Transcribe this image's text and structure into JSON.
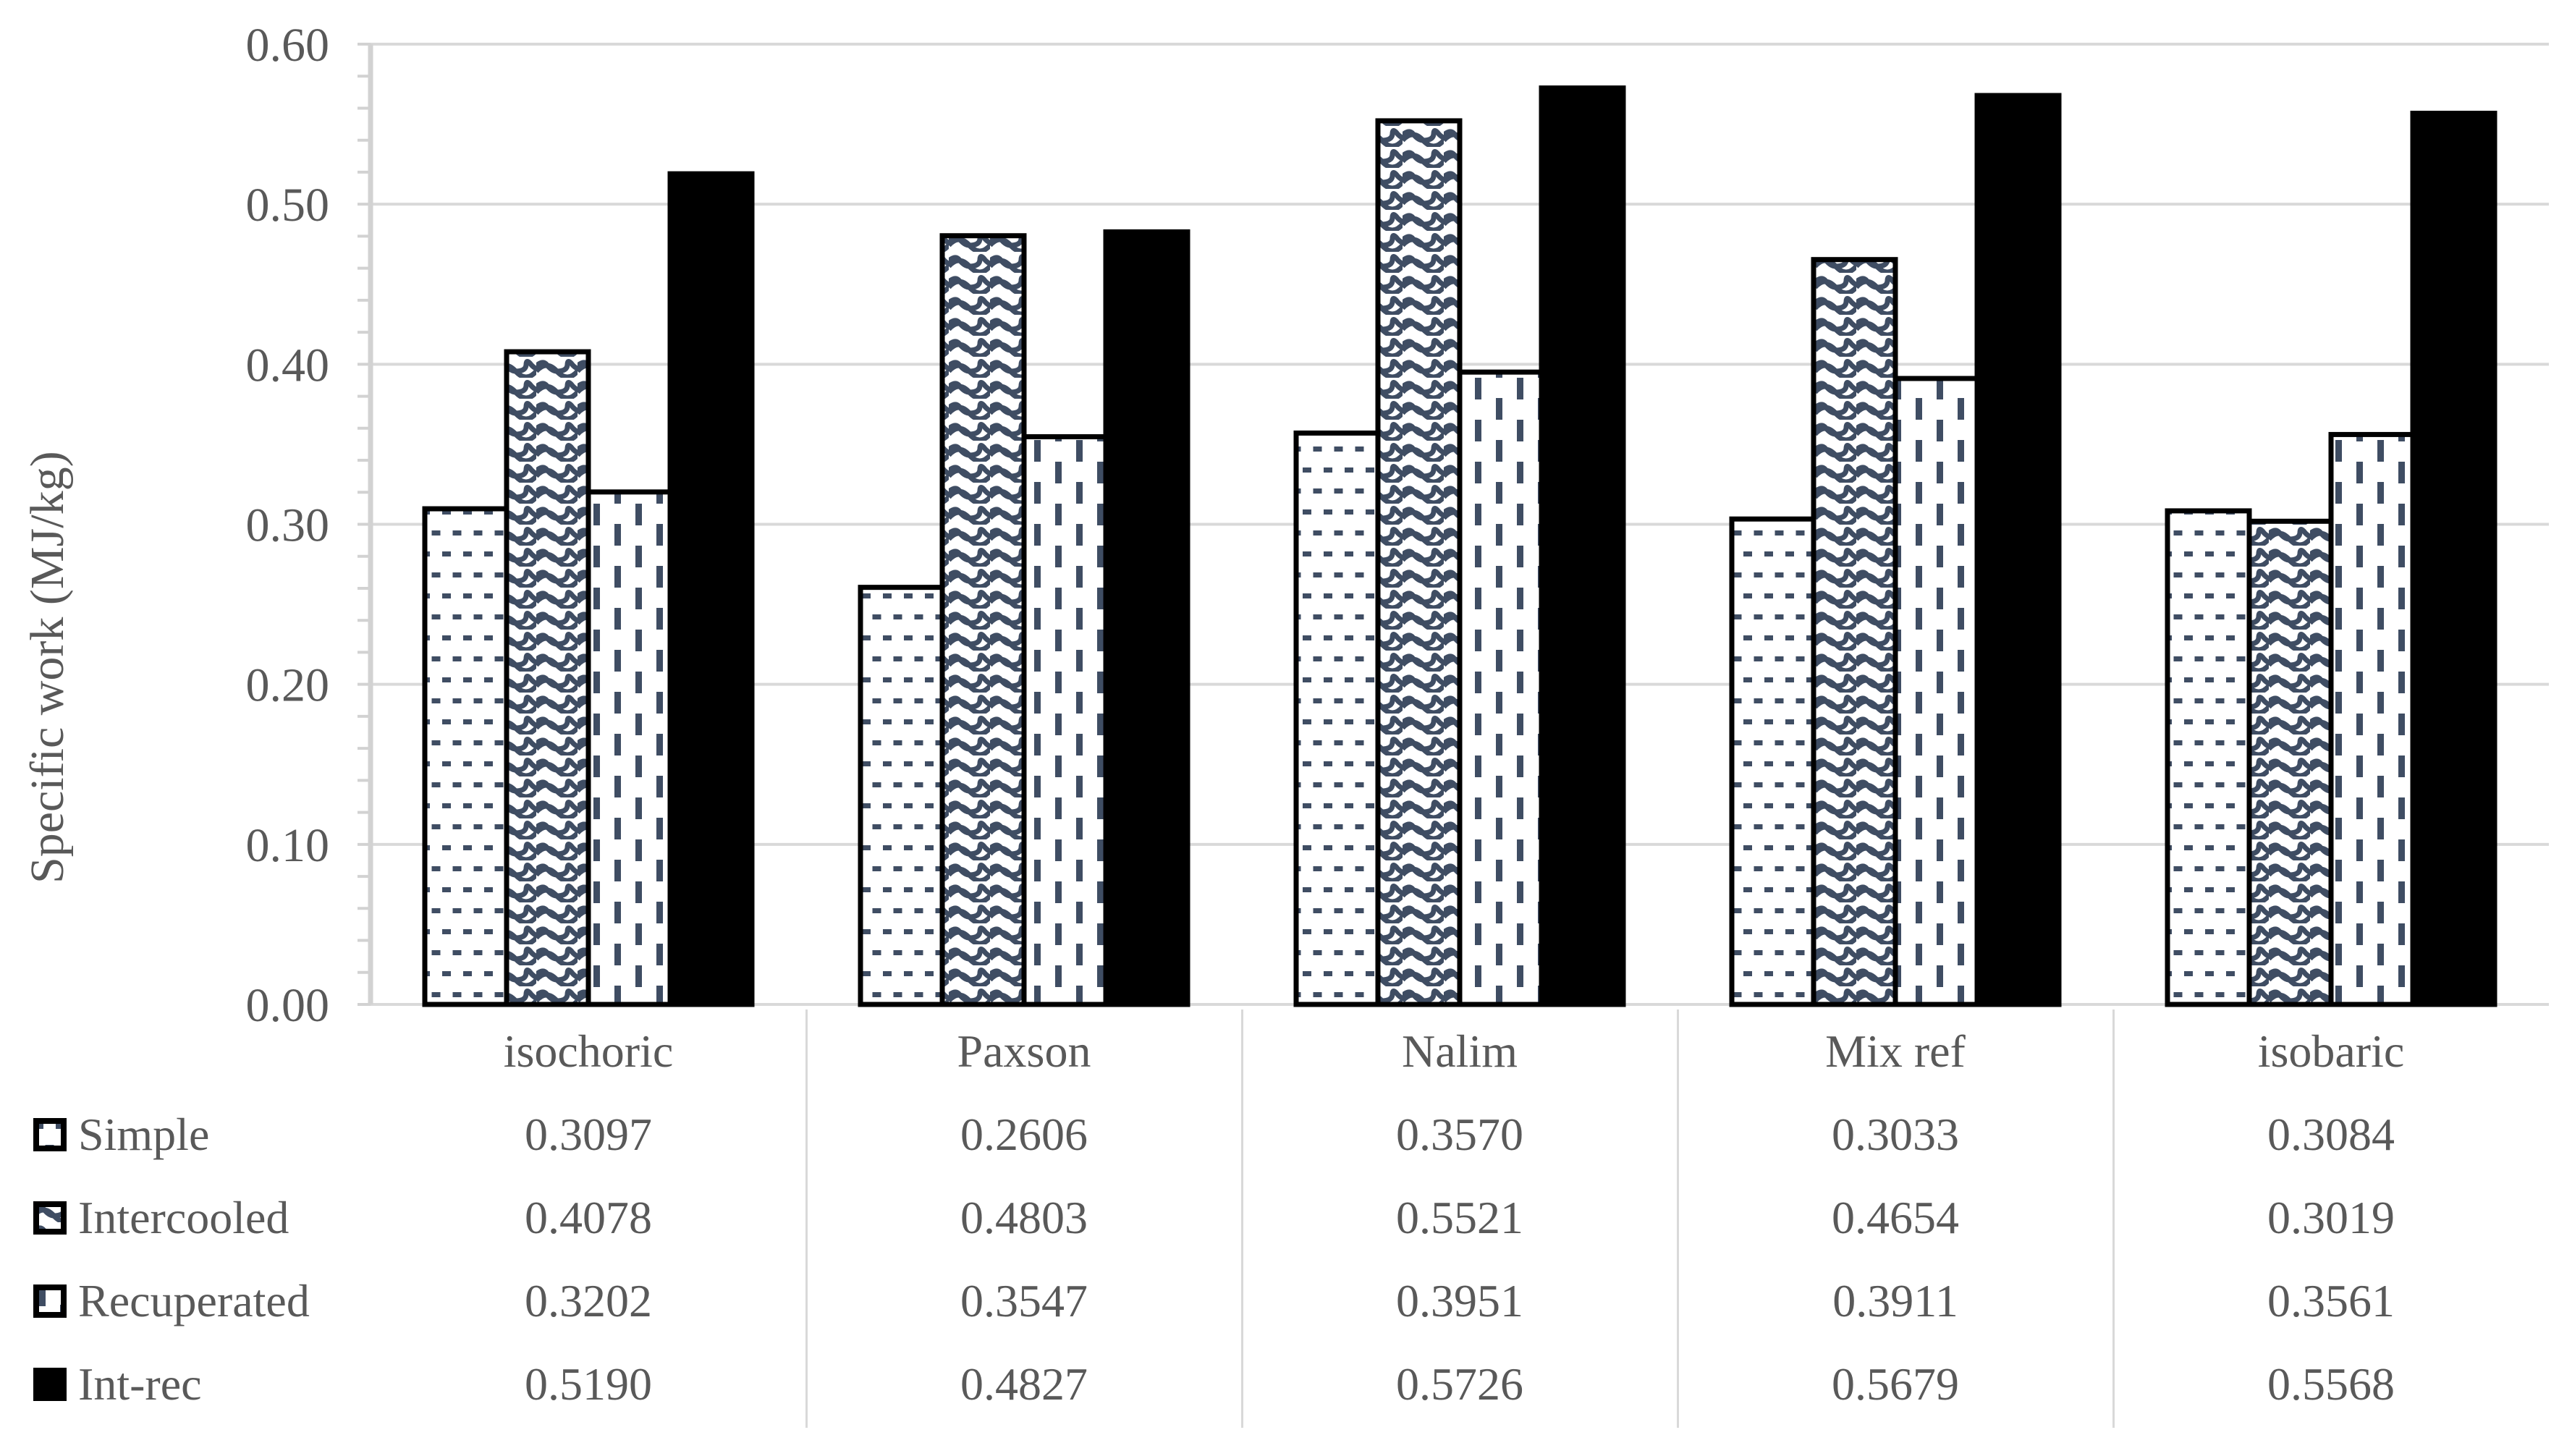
{
  "chart_data": {
    "type": "bar",
    "title": "",
    "xlabel": "",
    "ylabel": "Specific work (MJ/kg)",
    "ylim": [
      0,
      0.6
    ],
    "ytick_labels": [
      "0.00",
      "0.10",
      "0.20",
      "0.30",
      "0.40",
      "0.50",
      "0.60"
    ],
    "y_major_step": 0.1,
    "y_minor_tick_step": 0.02,
    "grid": "horizontal major gridlines on",
    "legend_position": "left column of data table below chart",
    "value_format_decimals": 4,
    "categories": [
      "isochoric",
      "Paxson",
      "Nalim",
      "Mix ref",
      "isobaric"
    ],
    "series": [
      {
        "name": "Simple",
        "swatch": "dots-pattern",
        "values": [
          0.3097,
          0.2606,
          0.357,
          0.3033,
          0.3084
        ]
      },
      {
        "name": "Intercooled",
        "swatch": "waves-pattern",
        "values": [
          0.4078,
          0.4803,
          0.5521,
          0.4654,
          0.3019
        ]
      },
      {
        "name": "Recuperated",
        "swatch": "vertical-dashes-pattern",
        "values": [
          0.3202,
          0.3547,
          0.3951,
          0.3911,
          0.3561
        ]
      },
      {
        "name": "Int-rec",
        "swatch": "solid-black",
        "values": [
          0.519,
          0.4827,
          0.5726,
          0.5679,
          0.5568
        ]
      }
    ],
    "colors": {
      "pattern_ink": "#3F4D63",
      "bar_border": "#000000",
      "solid_bar": "#000000",
      "text": "#595959",
      "gridline": "#D9D9D9",
      "axis_line": "#D2D2D2",
      "bar_background": "#FFFFFF"
    }
  }
}
